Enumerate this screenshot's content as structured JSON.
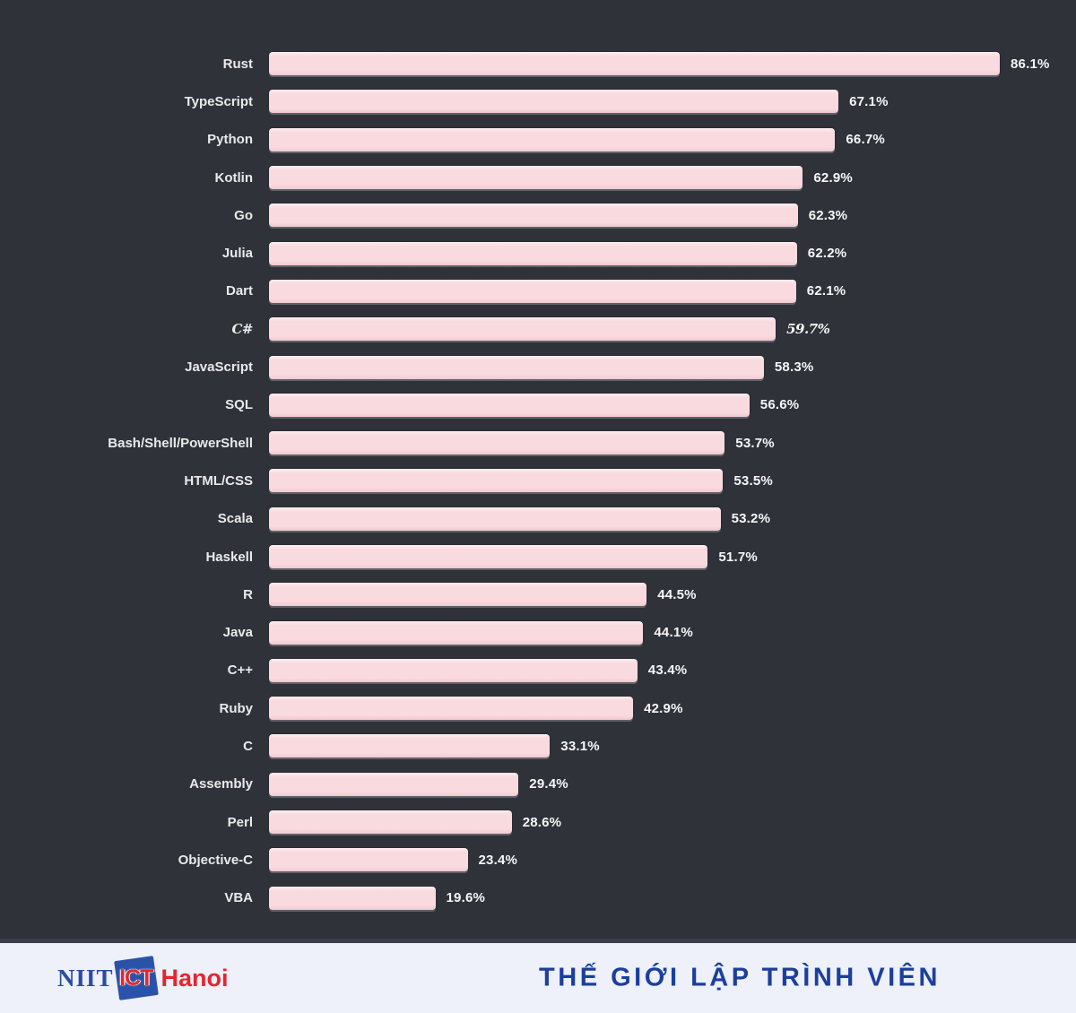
{
  "chart_data": {
    "type": "bar",
    "orientation": "horizontal",
    "title": "",
    "xlabel": "",
    "ylabel": "",
    "xlim": [
      0,
      100
    ],
    "grid": false,
    "legend": null,
    "value_suffix": "%",
    "categories": [
      "Rust",
      "TypeScript",
      "Python",
      "Kotlin",
      "Go",
      "Julia",
      "Dart",
      "C#",
      "JavaScript",
      "SQL",
      "Bash/Shell/PowerShell",
      "HTML/CSS",
      "Scala",
      "Haskell",
      "R",
      "Java",
      "C++",
      "Ruby",
      "C",
      "Assembly",
      "Perl",
      "Objective-C",
      "VBA"
    ],
    "values": [
      86.1,
      67.1,
      66.7,
      62.9,
      62.3,
      62.2,
      62.1,
      59.7,
      58.3,
      56.6,
      53.7,
      53.5,
      53.2,
      51.7,
      44.5,
      44.1,
      43.4,
      42.9,
      33.1,
      29.4,
      28.6,
      23.4,
      19.6
    ],
    "alt_font_category": "C#",
    "colors": {
      "background": "#2f3238",
      "bar": "#f9dbdf",
      "category_label": "#eaeaea",
      "value_label": "#f7f7f7"
    }
  },
  "footer": {
    "title": "THẾ GIỚI LẬP TRÌNH VIÊN",
    "logo": {
      "niit": "NIIT",
      "ict": "ICT",
      "hanoi": "Hanoi"
    },
    "colors": {
      "background": "#eef0fa",
      "title": "#1c3f9e",
      "logo_blue": "#2a4da1",
      "logo_red": "#e5252c"
    }
  }
}
